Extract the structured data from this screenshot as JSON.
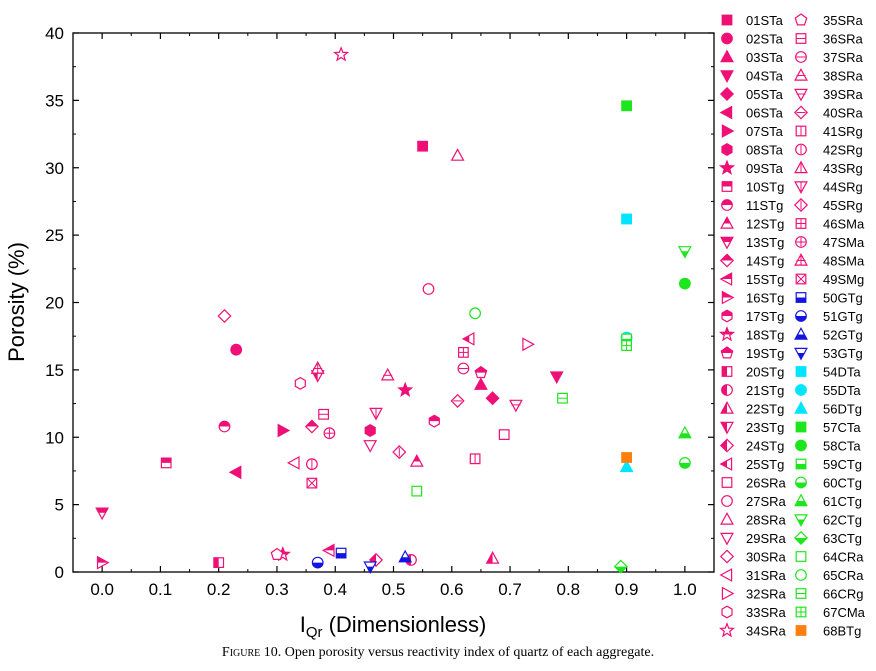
{
  "chart_data": {
    "type": "scatter",
    "title": "",
    "xlabel": "I",
    "xlabel_sub": "Qr",
    "xlabel_rest": " (Dimensionless)",
    "ylabel": "Porosity (%)",
    "xlim": [
      -0.05,
      1.05
    ],
    "ylim": [
      0,
      40
    ],
    "x_ticks": [
      "0.0",
      "0.1",
      "0.2",
      "0.3",
      "0.4",
      "0.5",
      "0.6",
      "0.7",
      "0.8",
      "0.9",
      "1.0"
    ],
    "y_ticks": [
      "0",
      "5",
      "10",
      "15",
      "20",
      "25",
      "30",
      "35",
      "40"
    ],
    "grid": false,
    "legend_position": "right",
    "colors": {
      "pink": "#ee1077",
      "blue": "#1414e0",
      "cyan": "#00e5ff",
      "green": "#1ee61e",
      "orange": "#ff7f0e"
    },
    "series": [
      {
        "name": "01STa",
        "marker": "square",
        "fill": "full",
        "color": "pink",
        "x": 0.55,
        "y": 31.6
      },
      {
        "name": "02STa",
        "marker": "circle",
        "fill": "full",
        "color": "pink",
        "x": 0.23,
        "y": 16.5
      },
      {
        "name": "03STa",
        "marker": "triangle-up",
        "fill": "full",
        "color": "pink",
        "x": 0.65,
        "y": 13.9
      },
      {
        "name": "04STa",
        "marker": "triangle-down",
        "fill": "full",
        "color": "pink",
        "x": 0.78,
        "y": 14.5
      },
      {
        "name": "05STa",
        "marker": "diamond",
        "fill": "full",
        "color": "pink",
        "x": 0.67,
        "y": 12.9
      },
      {
        "name": "06STa",
        "marker": "triangle-left",
        "fill": "full",
        "color": "pink",
        "x": 0.23,
        "y": 7.4
      },
      {
        "name": "07STa",
        "marker": "triangle-right",
        "fill": "full",
        "color": "pink",
        "x": 0.31,
        "y": 10.5
      },
      {
        "name": "08STa",
        "marker": "hexagon",
        "fill": "full",
        "color": "pink",
        "x": 0.46,
        "y": 10.5
      },
      {
        "name": "09STa",
        "marker": "star",
        "fill": "full",
        "color": "pink",
        "x": 0.52,
        "y": 13.5
      },
      {
        "name": "10STg",
        "marker": "square",
        "fill": "top",
        "color": "pink",
        "x": 0.11,
        "y": 8.1
      },
      {
        "name": "11STg",
        "marker": "circle",
        "fill": "top",
        "color": "pink",
        "x": 0.21,
        "y": 10.8
      },
      {
        "name": "12STg",
        "marker": "triangle-up",
        "fill": "top",
        "color": "pink",
        "x": 0.54,
        "y": 8.2
      },
      {
        "name": "13STg",
        "marker": "triangle-down",
        "fill": "top",
        "color": "pink",
        "x": 0.0,
        "y": 4.4
      },
      {
        "name": "14STg",
        "marker": "diamond",
        "fill": "top",
        "color": "pink",
        "x": 0.36,
        "y": 10.8
      },
      {
        "name": "15STg",
        "marker": "triangle-left",
        "fill": "top",
        "color": "pink",
        "x": 0.39,
        "y": 1.6
      },
      {
        "name": "16STg",
        "marker": "triangle-right",
        "fill": "top",
        "color": "pink",
        "x": 0.0,
        "y": 0.7
      },
      {
        "name": "17STg",
        "marker": "hexagon",
        "fill": "top",
        "color": "pink",
        "x": 0.57,
        "y": 11.2
      },
      {
        "name": "18STg",
        "marker": "star",
        "fill": "top",
        "color": "pink",
        "x": 0.31,
        "y": 1.3
      },
      {
        "name": "19STg",
        "marker": "pentagon",
        "fill": "top",
        "color": "pink",
        "x": 0.65,
        "y": 14.8
      },
      {
        "name": "20STg",
        "marker": "square",
        "fill": "left",
        "color": "pink",
        "x": 0.2,
        "y": 0.7
      },
      {
        "name": "21STg",
        "marker": "circle",
        "fill": "left",
        "color": "pink",
        "x": 0.53,
        "y": 0.9
      },
      {
        "name": "22STg",
        "marker": "triangle-up",
        "fill": "left",
        "color": "pink",
        "x": 0.67,
        "y": 1.0
      },
      {
        "name": "23STg",
        "marker": "triangle-down",
        "fill": "left",
        "color": "pink",
        "x": 0.37,
        "y": 14.6
      },
      {
        "name": "24STg",
        "marker": "diamond",
        "fill": "left",
        "color": "pink",
        "x": 0.47,
        "y": 0.9
      },
      {
        "name": "25STg",
        "marker": "triangle-left",
        "fill": "left",
        "color": "pink",
        "x": 0.63,
        "y": 17.3
      },
      {
        "name": "26SRa",
        "marker": "square",
        "fill": "none",
        "color": "pink",
        "x": 0.69,
        "y": 10.2
      },
      {
        "name": "27SRa",
        "marker": "circle",
        "fill": "none",
        "color": "pink",
        "x": 0.56,
        "y": 21.0
      },
      {
        "name": "28SRa",
        "marker": "triangle-up",
        "fill": "none",
        "color": "pink",
        "x": 0.61,
        "y": 30.9
      },
      {
        "name": "29SRa",
        "marker": "triangle-down",
        "fill": "none",
        "color": "pink",
        "x": 0.46,
        "y": 9.4
      },
      {
        "name": "30SRa",
        "marker": "diamond",
        "fill": "none",
        "color": "pink",
        "x": 0.21,
        "y": 19.0
      },
      {
        "name": "31SRa",
        "marker": "triangle-left",
        "fill": "none",
        "color": "pink",
        "x": 0.33,
        "y": 8.1
      },
      {
        "name": "32SRa",
        "marker": "triangle-right",
        "fill": "none",
        "color": "pink",
        "x": 0.73,
        "y": 16.9
      },
      {
        "name": "33SRa",
        "marker": "hexagon",
        "fill": "none",
        "color": "pink",
        "x": 0.34,
        "y": 14.0
      },
      {
        "name": "34SRa",
        "marker": "star",
        "fill": "none",
        "color": "pink",
        "x": 0.41,
        "y": 38.4
      },
      {
        "name": "35SRa",
        "marker": "pentagon",
        "fill": "none",
        "color": "pink",
        "x": 0.3,
        "y": 1.3
      },
      {
        "name": "36SRa",
        "marker": "square-hline",
        "fill": "none",
        "color": "pink",
        "x": 0.38,
        "y": 11.7
      },
      {
        "name": "37SRa",
        "marker": "circle-hline",
        "fill": "none",
        "color": "pink",
        "x": 0.62,
        "y": 15.1
      },
      {
        "name": "38SRa",
        "marker": "triangle-up-hline",
        "fill": "none",
        "color": "pink",
        "x": 0.49,
        "y": 14.6
      },
      {
        "name": "39SRa",
        "marker": "triangle-down-hline",
        "fill": "none",
        "color": "pink",
        "x": 0.71,
        "y": 12.4
      },
      {
        "name": "40SRa",
        "marker": "diamond-hline",
        "fill": "none",
        "color": "pink",
        "x": 0.61,
        "y": 12.7
      },
      {
        "name": "41SRg",
        "marker": "square-vline",
        "fill": "none",
        "color": "pink",
        "x": 0.64,
        "y": 8.4
      },
      {
        "name": "42SRg",
        "marker": "circle-vline",
        "fill": "none",
        "color": "pink",
        "x": 0.36,
        "y": 8.0
      },
      {
        "name": "43SRg",
        "marker": "triangle-up-vline",
        "fill": "none",
        "color": "pink",
        "x": 0.37,
        "y": 15.1
      },
      {
        "name": "44SRg",
        "marker": "triangle-down-vline",
        "fill": "none",
        "color": "pink",
        "x": 0.47,
        "y": 11.8
      },
      {
        "name": "45SRg",
        "marker": "diamond-vline",
        "fill": "none",
        "color": "pink",
        "x": 0.51,
        "y": 8.9
      },
      {
        "name": "46SMa",
        "marker": "square-cross",
        "fill": "none",
        "color": "pink",
        "x": 0.62,
        "y": 16.3
      },
      {
        "name": "47SMa",
        "marker": "circle-cross",
        "fill": "none",
        "color": "pink",
        "x": 0.39,
        "y": 10.3
      },
      {
        "name": "48SMa",
        "marker": "triangle-up-cross",
        "fill": "none",
        "color": "pink",
        "x": 0.37,
        "y": 15.1
      },
      {
        "name": "49SMg",
        "marker": "square-x",
        "fill": "none",
        "color": "pink",
        "x": 0.36,
        "y": 6.6
      },
      {
        "name": "50GTg",
        "marker": "square",
        "fill": "bottom",
        "color": "blue",
        "x": 0.41,
        "y": 1.4
      },
      {
        "name": "51GTg",
        "marker": "circle",
        "fill": "bottom",
        "color": "blue",
        "x": 0.37,
        "y": 0.7
      },
      {
        "name": "52GTg",
        "marker": "triangle-up",
        "fill": "bottom",
        "color": "blue",
        "x": 0.52,
        "y": 1.1
      },
      {
        "name": "53GTg",
        "marker": "triangle-down",
        "fill": "bottom",
        "color": "blue",
        "x": 0.46,
        "y": 0.4
      },
      {
        "name": "54DTa",
        "marker": "square",
        "fill": "full",
        "color": "cyan",
        "x": 0.9,
        "y": 26.2
      },
      {
        "name": "55DTa",
        "marker": "circle",
        "fill": "full",
        "color": "cyan",
        "x": 0.9,
        "y": 17.4
      },
      {
        "name": "56DTg",
        "marker": "triangle-up",
        "fill": "full",
        "color": "cyan",
        "x": 0.9,
        "y": 7.8
      },
      {
        "name": "57CTa",
        "marker": "square",
        "fill": "full",
        "color": "green",
        "x": 0.9,
        "y": 34.6
      },
      {
        "name": "58CTa",
        "marker": "circle",
        "fill": "full",
        "color": "green",
        "x": 1.0,
        "y": 21.4
      },
      {
        "name": "59CTg",
        "marker": "square",
        "fill": "bottom",
        "color": "green",
        "x": 0.9,
        "y": 17.3
      },
      {
        "name": "60CTg",
        "marker": "circle",
        "fill": "bottom",
        "color": "green",
        "x": 1.0,
        "y": 8.1
      },
      {
        "name": "61CTg",
        "marker": "triangle-up",
        "fill": "bottom",
        "color": "green",
        "x": 1.0,
        "y": 10.3
      },
      {
        "name": "62CTg",
        "marker": "triangle-down",
        "fill": "bottom",
        "color": "green",
        "x": 1.0,
        "y": 23.8
      },
      {
        "name": "63CTg",
        "marker": "diamond",
        "fill": "bottom",
        "color": "green",
        "x": 0.89,
        "y": 0.4
      },
      {
        "name": "64CRa",
        "marker": "square",
        "fill": "none",
        "color": "green",
        "x": 0.54,
        "y": 6.0
      },
      {
        "name": "65CRa",
        "marker": "circle",
        "fill": "none",
        "color": "green",
        "x": 0.64,
        "y": 19.2
      },
      {
        "name": "66CRg",
        "marker": "square-hline",
        "fill": "none",
        "color": "green",
        "x": 0.79,
        "y": 12.9
      },
      {
        "name": "67CMa",
        "marker": "square-cross",
        "fill": "none",
        "color": "green",
        "x": 0.9,
        "y": 16.8
      },
      {
        "name": "68BTg",
        "marker": "square",
        "fill": "full",
        "color": "orange",
        "x": 0.9,
        "y": 8.5
      }
    ]
  },
  "caption": {
    "figure_label": "Figure 10.",
    "text": " Open porosity versus reactivity index of quartz of each aggregate."
  }
}
